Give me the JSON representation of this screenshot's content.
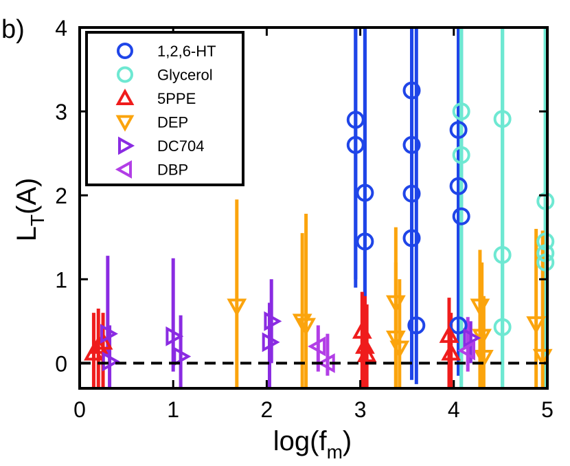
{
  "chart_data": {
    "type": "scatter",
    "panel_label": "b)",
    "xlabel": {
      "main": "log(f",
      "sub": "m",
      "close": ")"
    },
    "ylabel": {
      "main": "L",
      "sub": "T",
      "rest": "(A)"
    },
    "xlim": [
      0,
      5
    ],
    "ylim": [
      -0.3,
      4
    ],
    "xticks": [
      "0",
      "1",
      "2",
      "3",
      "4",
      "5"
    ],
    "yticks": [
      "0",
      "1",
      "2",
      "3",
      "4"
    ],
    "reference_line": {
      "y": 0,
      "style": "dashed"
    },
    "legend_position": "top-left",
    "series": [
      {
        "name": "1,2,6-HT",
        "marker": "circle",
        "color": "#1f45e8",
        "points": [
          {
            "x": 2.95,
            "y": 2.9,
            "lo": 0.9,
            "hi": 4.0
          },
          {
            "x": 2.95,
            "y": 2.6,
            "lo": 1.0,
            "hi": 4.0
          },
          {
            "x": 3.05,
            "y": 1.45,
            "lo": -0.15,
            "hi": 4.0
          },
          {
            "x": 3.05,
            "y": 2.03,
            "lo": -0.1,
            "hi": 4.0
          },
          {
            "x": 3.55,
            "y": 3.25,
            "lo": 0.0,
            "hi": 4.0
          },
          {
            "x": 3.55,
            "y": 2.6,
            "lo": 0.0,
            "hi": 4.0
          },
          {
            "x": 3.55,
            "y": 2.02,
            "lo": -0.2,
            "hi": 4.0
          },
          {
            "x": 3.55,
            "y": 1.49,
            "lo": 0.0,
            "hi": 4.0
          },
          {
            "x": 3.6,
            "y": 0.45,
            "lo": -0.25,
            "hi": 4.0
          },
          {
            "x": 4.05,
            "y": 2.78,
            "lo": -0.15,
            "hi": 4.0
          },
          {
            "x": 4.05,
            "y": 2.11,
            "lo": -0.1,
            "hi": 4.0
          },
          {
            "x": 4.08,
            "y": 1.75,
            "lo": -0.05,
            "hi": 4.0
          },
          {
            "x": 4.05,
            "y": 0.45,
            "lo": -0.15,
            "hi": 4.0
          }
        ]
      },
      {
        "name": "Glycerol",
        "marker": "circle",
        "color": "#6ee8d2",
        "points": [
          {
            "x": 4.08,
            "y": 3.0,
            "lo": -0.3,
            "hi": 4.0
          },
          {
            "x": 4.08,
            "y": 2.48,
            "lo": -0.3,
            "hi": 4.0
          },
          {
            "x": 4.52,
            "y": 2.91,
            "lo": -0.3,
            "hi": 4.0
          },
          {
            "x": 4.52,
            "y": 1.29,
            "lo": -0.3,
            "hi": 4.0
          },
          {
            "x": 4.52,
            "y": 0.43,
            "lo": -0.3,
            "hi": 4.0
          },
          {
            "x": 4.98,
            "y": 1.93,
            "lo": -0.3,
            "hi": 4.0
          },
          {
            "x": 4.98,
            "y": 1.45,
            "lo": -0.3,
            "hi": 4.0
          },
          {
            "x": 4.98,
            "y": 1.31,
            "lo": -0.3,
            "hi": 4.0
          },
          {
            "x": 4.98,
            "y": 1.2,
            "lo": -0.3,
            "hi": 4.0
          }
        ]
      },
      {
        "name": "5PPE",
        "marker": "triangle-up",
        "color": "#ef1c1c",
        "points": [
          {
            "x": 0.15,
            "y": 0.12,
            "lo": -0.3,
            "hi": 0.6
          },
          {
            "x": 0.2,
            "y": 0.2,
            "lo": -0.3,
            "hi": 0.65
          },
          {
            "x": 0.25,
            "y": 0.25,
            "lo": -0.3,
            "hi": 0.6
          },
          {
            "x": 3.02,
            "y": 0.38,
            "lo": -0.3,
            "hi": 0.85
          },
          {
            "x": 3.05,
            "y": 0.2,
            "lo": -0.3,
            "hi": 0.8
          },
          {
            "x": 3.07,
            "y": 0.1,
            "lo": -0.3,
            "hi": 0.7
          },
          {
            "x": 3.95,
            "y": 0.33,
            "lo": -0.3,
            "hi": 0.78
          },
          {
            "x": 3.97,
            "y": 0.12,
            "lo": -0.3,
            "hi": 0.6
          }
        ]
      },
      {
        "name": "DEP",
        "marker": "triangle-down",
        "color": "#fba40d",
        "points": [
          {
            "x": 1.68,
            "y": 0.68,
            "lo": -0.3,
            "hi": 1.95
          },
          {
            "x": 2.38,
            "y": 0.5,
            "lo": -0.3,
            "hi": 1.55
          },
          {
            "x": 2.42,
            "y": 0.45,
            "lo": -0.3,
            "hi": 1.78
          },
          {
            "x": 3.38,
            "y": 0.72,
            "lo": -0.3,
            "hi": 1.62
          },
          {
            "x": 3.38,
            "y": 0.3,
            "lo": -0.3,
            "hi": 1.2
          },
          {
            "x": 3.42,
            "y": 0.18,
            "lo": -0.3,
            "hi": 1.0
          },
          {
            "x": 4.28,
            "y": 0.68,
            "lo": -0.3,
            "hi": 1.35
          },
          {
            "x": 4.3,
            "y": 0.32,
            "lo": -0.3,
            "hi": 1.2
          },
          {
            "x": 4.32,
            "y": 0.07,
            "lo": -0.3,
            "hi": 0.8
          },
          {
            "x": 4.88,
            "y": 0.47,
            "lo": -0.3,
            "hi": 1.6
          },
          {
            "x": 4.95,
            "y": 0.08,
            "lo": -0.3,
            "hi": 1.58
          }
        ]
      },
      {
        "name": "DC704",
        "marker": "triangle-right",
        "color": "#8a2be2",
        "points": [
          {
            "x": 0.3,
            "y": 0.35,
            "lo": 0.1,
            "hi": 1.28
          },
          {
            "x": 0.32,
            "y": 0.02,
            "lo": -0.3,
            "hi": 0.45
          },
          {
            "x": 1.0,
            "y": 0.32,
            "lo": -0.1,
            "hi": 1.25
          },
          {
            "x": 1.08,
            "y": 0.08,
            "lo": -0.3,
            "hi": 0.57
          },
          {
            "x": 2.05,
            "y": 0.5,
            "lo": 0.0,
            "hi": 1.0
          },
          {
            "x": 2.03,
            "y": 0.25,
            "lo": -0.3,
            "hi": 0.72
          },
          {
            "x": 4.18,
            "y": 0.3,
            "lo": 0.0,
            "hi": 0.5
          }
        ]
      },
      {
        "name": "DBP",
        "marker": "triangle-left",
        "color": "#b23ee6",
        "points": [
          {
            "x": 2.55,
            "y": 0.2,
            "lo": -0.1,
            "hi": 0.45
          },
          {
            "x": 2.65,
            "y": 0.0,
            "lo": -0.15,
            "hi": 0.35
          },
          {
            "x": 4.15,
            "y": 0.15,
            "lo": -0.1,
            "hi": 0.55
          }
        ]
      }
    ]
  }
}
